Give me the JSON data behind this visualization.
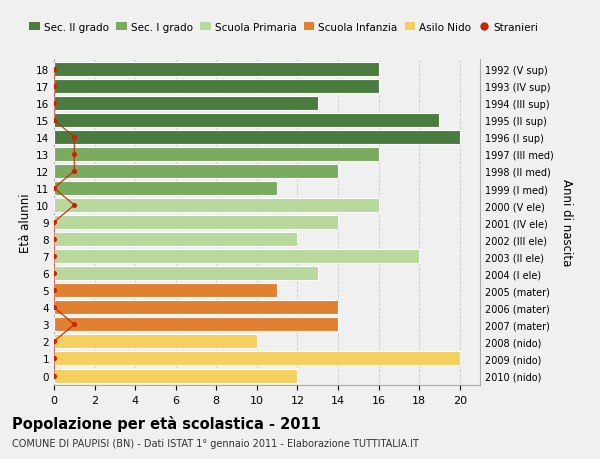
{
  "ages": [
    18,
    17,
    16,
    15,
    14,
    13,
    12,
    11,
    10,
    9,
    8,
    7,
    6,
    5,
    4,
    3,
    2,
    1,
    0
  ],
  "right_labels": [
    "1992 (V sup)",
    "1993 (IV sup)",
    "1994 (III sup)",
    "1995 (II sup)",
    "1996 (I sup)",
    "1997 (III med)",
    "1998 (II med)",
    "1999 (I med)",
    "2000 (V ele)",
    "2001 (IV ele)",
    "2002 (III ele)",
    "2003 (II ele)",
    "2004 (I ele)",
    "2005 (mater)",
    "2006 (mater)",
    "2007 (mater)",
    "2008 (nido)",
    "2009 (nido)",
    "2010 (nido)"
  ],
  "bar_values": [
    16,
    16,
    13,
    19,
    20,
    16,
    14,
    11,
    16,
    14,
    12,
    18,
    13,
    11,
    14,
    14,
    10,
    20,
    12
  ],
  "bar_colors": [
    "#4a7c3f",
    "#4a7c3f",
    "#4a7c3f",
    "#4a7c3f",
    "#4a7c3f",
    "#7aab5e",
    "#7aab5e",
    "#7aab5e",
    "#b8d89e",
    "#b8d89e",
    "#b8d89e",
    "#b8d89e",
    "#b8d89e",
    "#e08030",
    "#e08030",
    "#e08030",
    "#f5d060",
    "#f5d060",
    "#f5d060"
  ],
  "stranieri_x": [
    0,
    0,
    0,
    0,
    1,
    1,
    1,
    0,
    1,
    0,
    0,
    0,
    0,
    0,
    0,
    1,
    0,
    0,
    0
  ],
  "xlim": [
    0,
    21
  ],
  "xticks": [
    0,
    2,
    4,
    6,
    8,
    10,
    12,
    14,
    16,
    18,
    20
  ],
  "title": "Popolazione per età scolastica - 2011",
  "subtitle": "COMUNE DI PAUPISI (BN) - Dati ISTAT 1° gennaio 2011 - Elaborazione TUTTITALIA.IT",
  "ylabel": "Età alunni",
  "y2label": "Anni di nascita",
  "legend_labels": [
    "Sec. II grado",
    "Sec. I grado",
    "Scuola Primaria",
    "Scuola Infanzia",
    "Asilo Nido",
    "Stranieri"
  ],
  "legend_colors": [
    "#4a7c3f",
    "#7aab5e",
    "#b8d89e",
    "#e08030",
    "#f5d060",
    "#cc2200"
  ],
  "bg_color": "#f0f0f0",
  "bar_height": 0.82,
  "stranieri_color": "#cc2200",
  "grid_color": "#cccccc"
}
